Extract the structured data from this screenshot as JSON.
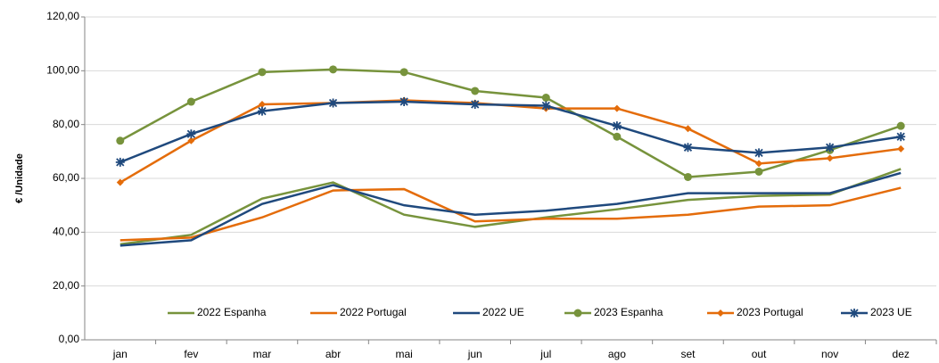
{
  "chart_data": {
    "type": "line",
    "y_label": "€ /Unidade",
    "categories": [
      "jan",
      "fev",
      "mar",
      "abr",
      "mai",
      "jun",
      "jul",
      "ago",
      "set",
      "out",
      "nov",
      "dez"
    ],
    "series": [
      {
        "name": "2022 Espanha",
        "color": "#77933c",
        "marker": "none",
        "values": [
          35.5,
          39,
          52.5,
          58.5,
          46.5,
          42,
          45.5,
          48.5,
          52,
          53.5,
          54,
          63.5
        ]
      },
      {
        "name": "2022 Portugal",
        "color": "#e46c0a",
        "marker": "none",
        "values": [
          37,
          38,
          45.5,
          55.5,
          56,
          44,
          45,
          45,
          46.5,
          49.5,
          50,
          56.5
        ]
      },
      {
        "name": "2022 UE",
        "color": "#1f497d",
        "marker": "none",
        "values": [
          35,
          37,
          50.5,
          57.5,
          50,
          46.5,
          48,
          50.5,
          54.5,
          54.5,
          54.5,
          62
        ]
      },
      {
        "name": "2023 Espanha",
        "color": "#77933c",
        "marker": "circle",
        "values": [
          74,
          88.5,
          99.5,
          100.5,
          99.5,
          92.5,
          90,
          75.5,
          60.5,
          62.5,
          70.5,
          79.5
        ]
      },
      {
        "name": "2023 Portugal",
        "color": "#e46c0a",
        "marker": "diamond",
        "values": [
          58.5,
          74,
          87.5,
          88,
          89,
          88,
          86,
          86,
          78.5,
          65.5,
          67.5,
          71
        ]
      },
      {
        "name": "2023 UE",
        "color": "#1f497d",
        "marker": "star",
        "values": [
          66,
          76.5,
          85,
          88,
          88.5,
          87.5,
          87,
          79.5,
          71.5,
          69.5,
          71.5,
          75.5
        ]
      }
    ],
    "ylim": [
      0,
      120
    ],
    "yticks": [
      {
        "value": 0,
        "label": "0,00"
      },
      {
        "value": 20,
        "label": "20,00"
      },
      {
        "value": 40,
        "label": "40,00"
      },
      {
        "value": 60,
        "label": "60,00"
      },
      {
        "value": 80,
        "label": "80,00"
      },
      {
        "value": 100,
        "label": "100,00"
      },
      {
        "value": 120,
        "label": "120,00"
      }
    ],
    "grid": true
  }
}
